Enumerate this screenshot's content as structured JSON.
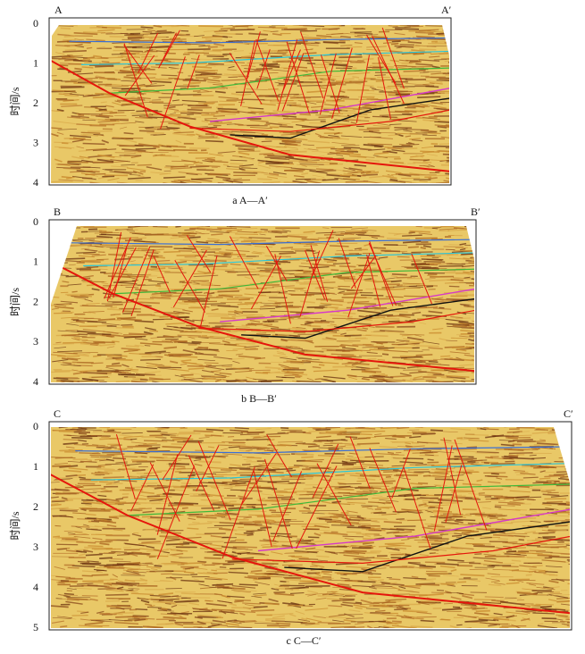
{
  "panels": [
    {
      "left_label": "A",
      "right_label": "A′",
      "y_axis_label": "时间/s",
      "yticks": [
        "0",
        "1",
        "2",
        "3",
        "4"
      ],
      "caption": "a  A—A′"
    },
    {
      "left_label": "B",
      "right_label": "B′",
      "y_axis_label": "时间/s",
      "yticks": [
        "0",
        "1",
        "2",
        "3",
        "4"
      ],
      "caption": "b  B—B′"
    },
    {
      "left_label": "C",
      "right_label": "C′",
      "y_axis_label": "时间/s",
      "yticks": [
        "0",
        "1",
        "2",
        "3",
        "4",
        "5"
      ],
      "caption": "c  C—C′"
    }
  ]
}
